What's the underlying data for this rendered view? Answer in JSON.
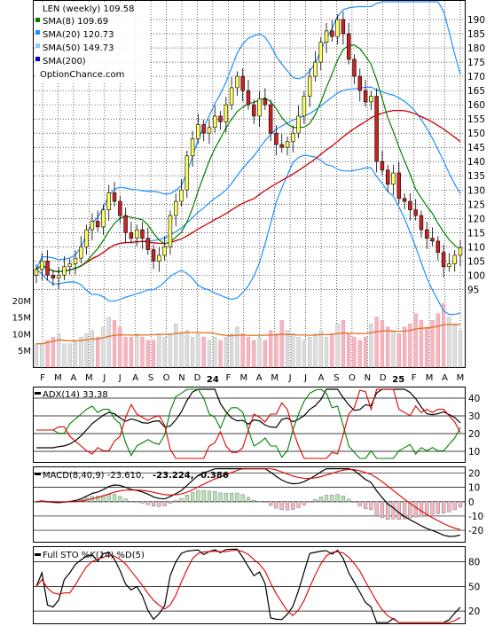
{
  "chart_data": {
    "type": "line",
    "ticker_title": "LEN (weekly) 109.58",
    "legend": [
      {
        "label": "SMA(8) 109.69",
        "color": "#008000"
      },
      {
        "label": "SMA(20) 120.73",
        "color": "#1e90ff"
      },
      {
        "label": "SMA(50) 149.73",
        "color": "#87cefa"
      },
      {
        "label": "SMA(200)",
        "color": "#0000cd"
      },
      {
        "label": "OptionChance.com",
        "color": ""
      }
    ],
    "colors": {
      "up": "#ffff66",
      "down": "#cc2222",
      "sma8": "#008000",
      "sma20": "#cc0000",
      "bollinger": "#1e90ff",
      "volume_up": "#dddddd",
      "volume_down": "#f4b6c2",
      "volume_ma": "#e07020"
    },
    "x_ticks": [
      "F",
      "M",
      "A",
      "M",
      "J",
      "J",
      "A",
      "S",
      "O",
      "N",
      "D",
      "24",
      "F",
      "M",
      "A",
      "M",
      "J",
      "J",
      "A",
      "S",
      "O",
      "N",
      "D",
      "25",
      "F",
      "M",
      "A",
      "M"
    ],
    "x_bold_ticks": [
      "24",
      "25"
    ],
    "price_axis": {
      "ylim": [
        92,
        195
      ],
      "ticks": [
        95,
        100,
        105,
        110,
        115,
        120,
        125,
        130,
        135,
        140,
        145,
        150,
        155,
        160,
        165,
        170,
        175,
        180,
        185,
        190
      ]
    },
    "volume_axis": {
      "ylim": [
        0,
        25
      ],
      "ticks": [
        "20M",
        "15M",
        "10M",
        "5M"
      ],
      "tick_values": [
        20,
        15,
        10,
        5
      ]
    },
    "close": [
      102,
      105,
      100,
      99,
      100,
      103,
      104,
      106,
      110,
      116,
      119,
      117,
      123,
      129,
      126,
      121,
      115,
      113,
      116,
      113,
      109,
      105,
      107,
      110,
      121,
      126,
      130,
      142,
      148,
      153,
      150,
      152,
      156,
      154,
      160,
      166,
      170,
      165,
      160,
      156,
      162,
      160,
      150,
      146,
      145,
      147,
      150,
      156,
      163,
      170,
      175,
      182,
      186,
      184,
      190,
      185,
      176,
      170,
      165,
      161,
      163,
      140,
      137,
      132,
      136,
      127,
      126,
      123,
      121,
      116,
      113,
      112,
      108,
      103,
      104,
      107,
      109.58
    ],
    "volume": [
      7,
      7,
      8,
      9,
      10,
      7,
      7,
      8,
      9,
      10,
      11,
      9,
      12,
      15,
      14,
      12,
      9,
      9,
      10,
      9,
      8,
      8,
      10,
      9,
      10,
      13,
      10,
      11,
      9,
      10,
      9,
      8,
      9,
      8,
      9,
      10,
      12,
      10,
      9,
      8,
      9,
      8,
      11,
      10,
      14,
      11,
      10,
      9,
      8,
      9,
      10,
      11,
      9,
      10,
      13,
      14,
      10,
      9,
      8,
      9,
      13,
      15,
      14,
      12,
      11,
      10,
      12,
      13,
      16,
      14,
      12,
      14,
      16,
      19,
      15,
      13,
      11
    ],
    "adx": {
      "label": "ADX(14) 33.38",
      "ylim": [
        4,
        46
      ],
      "ticks": [
        40,
        30,
        20,
        10
      ]
    },
    "macd": {
      "label": "MACD(8,40,9) -23.610,",
      "value2": "-23.224,",
      "value3": "-0.386",
      "value2_color": "#ee0000",
      "value3_color": "#1e4fd0",
      "ylim": [
        -28,
        24
      ],
      "ticks": [
        20,
        10,
        0,
        -10,
        -20
      ]
    },
    "sto": {
      "label": "Full STO %K(14) %D(5)",
      "ylim": [
        5,
        98
      ],
      "ticks": [
        80,
        50,
        20
      ]
    }
  }
}
